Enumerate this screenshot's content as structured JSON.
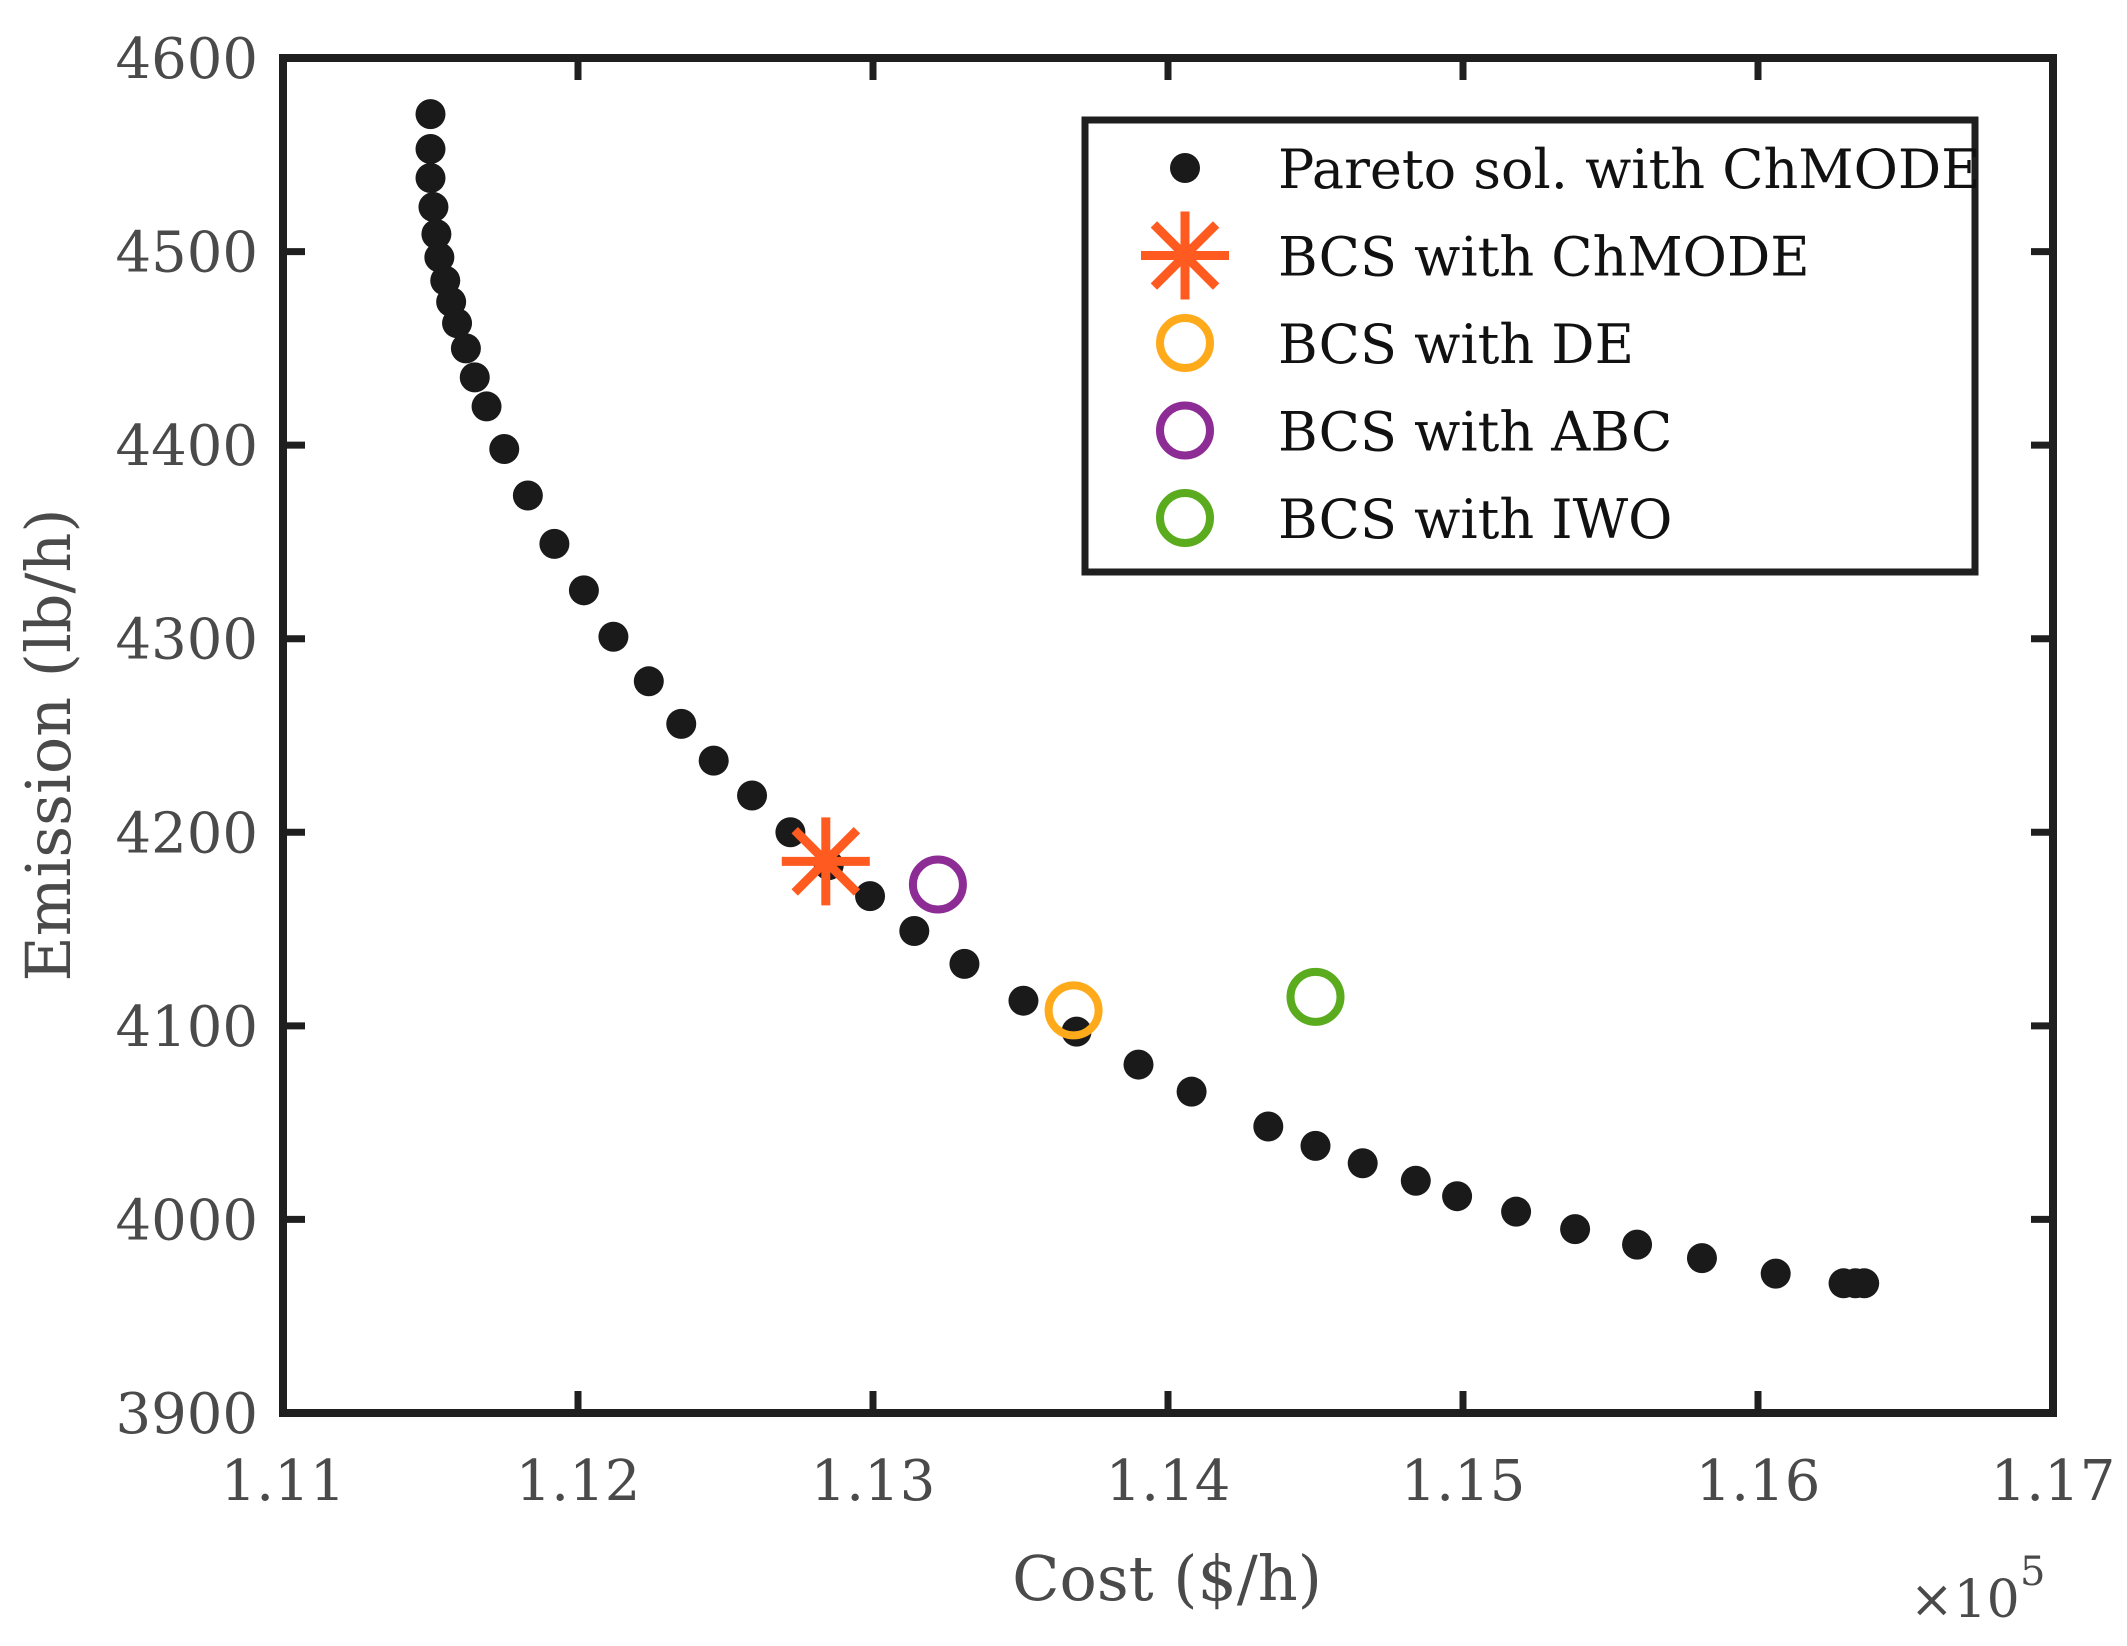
{
  "chart_data": {
    "type": "scatter",
    "title": "",
    "xlabel": "Cost ($/h)",
    "ylabel": "Emission (lb/h)",
    "x_multiplier_label": "×10",
    "x_multiplier_exponent": "5",
    "xlim": [
      1.11,
      1.17
    ],
    "ylim": [
      3900,
      4600
    ],
    "xticks": [
      1.11,
      1.12,
      1.13,
      1.14,
      1.15,
      1.16,
      1.17
    ],
    "xtick_labels": [
      "1.11",
      "1.12",
      "1.13",
      "1.14",
      "1.15",
      "1.16",
      "1.17"
    ],
    "yticks": [
      3900,
      4000,
      4100,
      4200,
      4300,
      4400,
      4500,
      4600
    ],
    "ytick_labels": [
      "3900",
      "4000",
      "4100",
      "4200",
      "4300",
      "4400",
      "4500",
      "4600"
    ],
    "legend_position": "top-right",
    "series": [
      {
        "name": "Pareto sol. with ChMODE",
        "marker": "filled-circle",
        "color": "#1a1a1a",
        "points": [
          [
            1.115,
            4571
          ],
          [
            1.115,
            4553
          ],
          [
            1.115,
            4538
          ],
          [
            1.1151,
            4523
          ],
          [
            1.1152,
            4509
          ],
          [
            1.1153,
            4497
          ],
          [
            1.1155,
            4485
          ],
          [
            1.1157,
            4474
          ],
          [
            1.1159,
            4463
          ],
          [
            1.1162,
            4450
          ],
          [
            1.1165,
            4435
          ],
          [
            1.1169,
            4420
          ],
          [
            1.1175,
            4398
          ],
          [
            1.1183,
            4374
          ],
          [
            1.1192,
            4349
          ],
          [
            1.1202,
            4325
          ],
          [
            1.1212,
            4301
          ],
          [
            1.1224,
            4278
          ],
          [
            1.1235,
            4256
          ],
          [
            1.1246,
            4237
          ],
          [
            1.1259,
            4219
          ],
          [
            1.1272,
            4200
          ],
          [
            1.1285,
            4183
          ],
          [
            1.1299,
            4167
          ],
          [
            1.1314,
            4149
          ],
          [
            1.1331,
            4132
          ],
          [
            1.1351,
            4113
          ],
          [
            1.1369,
            4097
          ],
          [
            1.139,
            4080
          ],
          [
            1.1408,
            4066
          ],
          [
            1.1434,
            4048
          ],
          [
            1.145,
            4038
          ],
          [
            1.1466,
            4029
          ],
          [
            1.1484,
            4020
          ],
          [
            1.1498,
            4012
          ],
          [
            1.1518,
            4004
          ],
          [
            1.1538,
            3995
          ],
          [
            1.1559,
            3987
          ],
          [
            1.1581,
            3980
          ],
          [
            1.1606,
            3972
          ],
          [
            1.1629,
            3967
          ],
          [
            1.1633,
            3967
          ],
          [
            1.1636,
            3967
          ]
        ]
      },
      {
        "name": "BCS with ChMODE",
        "marker": "asterisk",
        "color": "#ff5a1f",
        "points": [
          [
            1.1284,
            4185
          ]
        ]
      },
      {
        "name": "BCS with DE",
        "marker": "open-circle",
        "color": "#ffaa1a",
        "points": [
          [
            1.1368,
            4108
          ]
        ]
      },
      {
        "name": "BCS with ABC",
        "marker": "open-circle",
        "color": "#8e2c96",
        "points": [
          [
            1.1322,
            4173
          ]
        ]
      },
      {
        "name": "BCS with IWO",
        "marker": "open-circle",
        "color": "#5aab1e",
        "points": [
          [
            1.145,
            4115
          ]
        ]
      }
    ]
  }
}
